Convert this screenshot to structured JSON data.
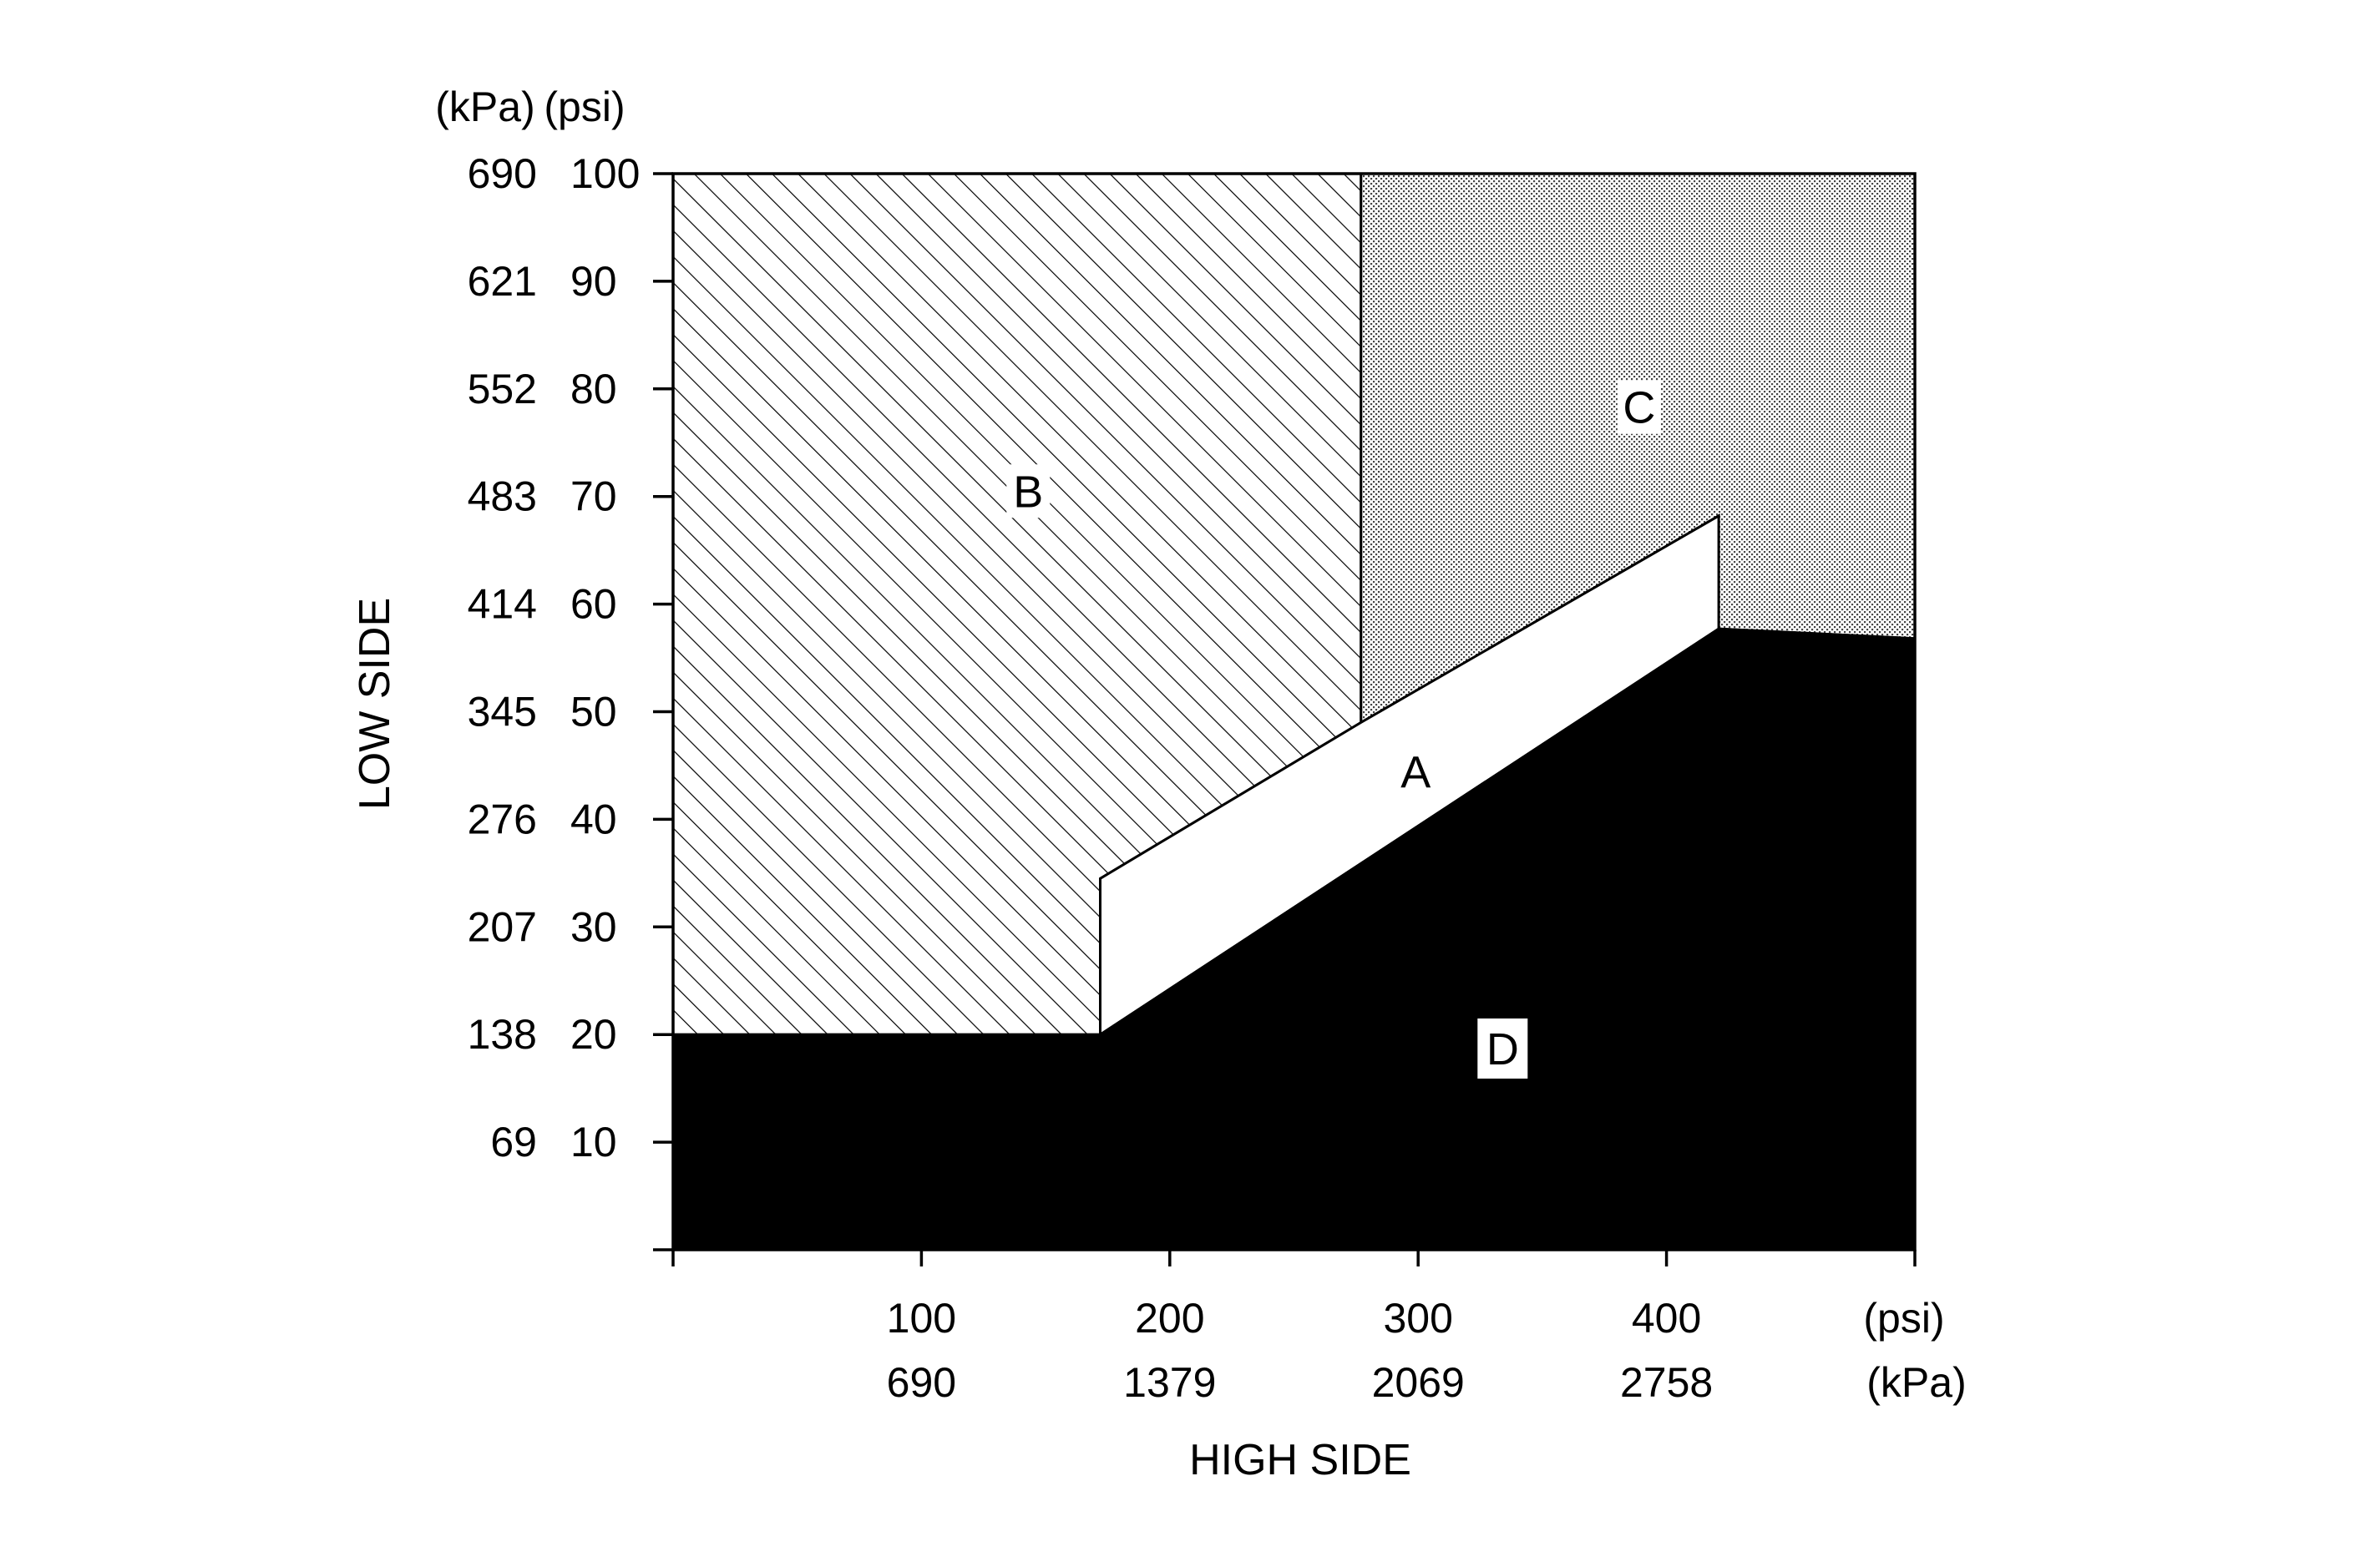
{
  "chart_data": {
    "type": "area",
    "title": "",
    "xlabel": "HIGH SIDE",
    "ylabel": "LOW SIDE",
    "x_unit_primary": "(psi)",
    "x_unit_secondary": "(kPa)",
    "y_unit_primary": "(psi)",
    "y_unit_secondary": "(kPa)",
    "xlim": [
      0,
      500
    ],
    "ylim": [
      0,
      100
    ],
    "x_ticks": [
      {
        "value": 0,
        "psi": "",
        "kpa": ""
      },
      {
        "value": 100,
        "psi": "100",
        "kpa": "690"
      },
      {
        "value": 200,
        "psi": "200",
        "kpa": "1379"
      },
      {
        "value": 300,
        "psi": "300",
        "kpa": "2069"
      },
      {
        "value": 400,
        "psi": "400",
        "kpa": "2758"
      },
      {
        "value": 500,
        "psi": "",
        "kpa": ""
      }
    ],
    "y_ticks": [
      {
        "value": 0,
        "psi": "",
        "kpa": ""
      },
      {
        "value": 10,
        "psi": "10",
        "kpa": "69"
      },
      {
        "value": 20,
        "psi": "20",
        "kpa": "138"
      },
      {
        "value": 30,
        "psi": "30",
        "kpa": "207"
      },
      {
        "value": 40,
        "psi": "40",
        "kpa": "276"
      },
      {
        "value": 50,
        "psi": "50",
        "kpa": "345"
      },
      {
        "value": 60,
        "psi": "60",
        "kpa": "414"
      },
      {
        "value": 70,
        "psi": "70",
        "kpa": "483"
      },
      {
        "value": 80,
        "psi": "80",
        "kpa": "552"
      },
      {
        "value": 90,
        "psi": "90",
        "kpa": "621"
      },
      {
        "value": 100,
        "psi": "100",
        "kpa": "690"
      }
    ],
    "grid": false,
    "regions": [
      {
        "id": "B",
        "label": "B",
        "fill": "hatch",
        "label_at": [
          143,
          70.5
        ],
        "polygon": [
          [
            0,
            20
          ],
          [
            0,
            100
          ],
          [
            277,
            100
          ],
          [
            277,
            49
          ],
          [
            172,
            34.5
          ],
          [
            172,
            20
          ]
        ]
      },
      {
        "id": "C",
        "label": "C",
        "fill": "stipple",
        "label_at": [
          389,
          78.3
        ],
        "polygon": [
          [
            277,
            100
          ],
          [
            500,
            100
          ],
          [
            500,
            56.8
          ],
          [
            421,
            57.7
          ],
          [
            421,
            68.2
          ],
          [
            277,
            49
          ]
        ]
      },
      {
        "id": "A",
        "label": "A",
        "fill": "white",
        "label_at": [
          299,
          44.4
        ],
        "polygon": [
          [
            172,
            20
          ],
          [
            172,
            34.5
          ],
          [
            277,
            49
          ],
          [
            421,
            68.2
          ],
          [
            421,
            57.7
          ]
        ]
      },
      {
        "id": "D",
        "label": "D",
        "fill": "black",
        "label_at": [
          334,
          18.7
        ],
        "polygon": [
          [
            0,
            0
          ],
          [
            0,
            20
          ],
          [
            172,
            20
          ],
          [
            421,
            57.7
          ],
          [
            500,
            56.8
          ],
          [
            500,
            0
          ]
        ]
      }
    ],
    "colors": {
      "ink": "#000000",
      "paper": "#ffffff",
      "stipple": "#d6d6d6"
    }
  }
}
